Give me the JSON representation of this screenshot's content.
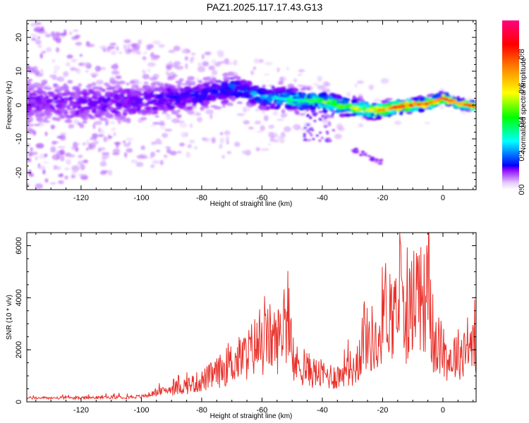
{
  "title": "PAZ1.2025.117.17.43.G13",
  "colorbar": {
    "label": "Normalized spectral amplitude",
    "ticks": [
      "0.0",
      "0.2",
      "0.4",
      "0.6",
      "0.8"
    ],
    "range": [
      0,
      1
    ],
    "colormap": [
      "#ffffff",
      "#8800ff",
      "#0000ff",
      "#00ffff",
      "#00ff00",
      "#ffff00",
      "#ff8800",
      "#ff0000",
      "#ff0080"
    ]
  },
  "chart_data": [
    {
      "type": "heatmap",
      "title": "",
      "xlabel": "Height of straight line (km)",
      "ylabel": "Frequency (Hz)",
      "xlim": [
        -138,
        11
      ],
      "ylim": [
        -25,
        25
      ],
      "xticks": [
        "-120",
        "-100",
        "-80",
        "-60",
        "-40",
        "-20",
        "0"
      ],
      "yticks": [
        "-20",
        "-10",
        "0",
        "10",
        "20"
      ],
      "ridge": {
        "x": [
          -138,
          -120,
          -100,
          -80,
          -70,
          -60,
          -50,
          -40,
          -30,
          -25,
          -20,
          -15,
          -10,
          -5,
          0,
          5,
          11
        ],
        "frequency": [
          1,
          0.5,
          1,
          3,
          5,
          2.5,
          1.5,
          1,
          -0.8,
          -1.5,
          -1.5,
          -0.5,
          0,
          0.5,
          2,
          0.5,
          -0.5
        ],
        "amplitude": [
          0.15,
          0.18,
          0.2,
          0.25,
          0.3,
          0.35,
          0.45,
          0.55,
          0.6,
          0.65,
          0.75,
          0.82,
          0.85,
          0.8,
          0.9,
          0.85,
          0.8
        ]
      },
      "side_band": {
        "x": [
          -30,
          -28,
          -25,
          -22,
          -20
        ],
        "frequency": [
          -13,
          -14,
          -15,
          -16.5,
          -17
        ]
      }
    },
    {
      "type": "line",
      "title": "",
      "xlabel": "Height of straight line (km)",
      "ylabel": "SNR (10 * v/v)",
      "xlim": [
        -138,
        11
      ],
      "ylim": [
        0,
        6500
      ],
      "xticks": [
        "-120",
        "-100",
        "-80",
        "-60",
        "-40",
        "-20",
        "0"
      ],
      "yticks": [
        "0",
        "2000",
        "4000",
        "6000"
      ],
      "series_color": "#e8302a",
      "series": [
        {
          "x": [
            -138,
            -120,
            -100,
            -92,
            -86,
            -80,
            -75,
            -70,
            -65,
            -62,
            -60,
            -58,
            -55,
            -52,
            -50,
            -46,
            -42,
            -38,
            -34,
            -32,
            -30,
            -28,
            -26,
            -25,
            -23,
            -22,
            -20,
            -18,
            -16,
            -14,
            -13,
            -12,
            -10,
            -8,
            -6,
            -5,
            -4,
            -3,
            -2,
            0,
            2,
            4,
            6,
            8,
            10,
            11
          ],
          "y": [
            150,
            150,
            200,
            450,
            600,
            800,
            1100,
            1500,
            1800,
            2200,
            2000,
            2500,
            2300,
            3200,
            1500,
            1300,
            1100,
            1000,
            1000,
            1500,
            1200,
            1600,
            2800,
            2300,
            2500,
            1700,
            3500,
            3800,
            3000,
            4500,
            3000,
            3200,
            3900,
            4400,
            3700,
            6000,
            3000,
            1800,
            2200,
            1900,
            1600,
            1800,
            1900,
            2200,
            2100,
            2300
          ]
        }
      ]
    }
  ]
}
